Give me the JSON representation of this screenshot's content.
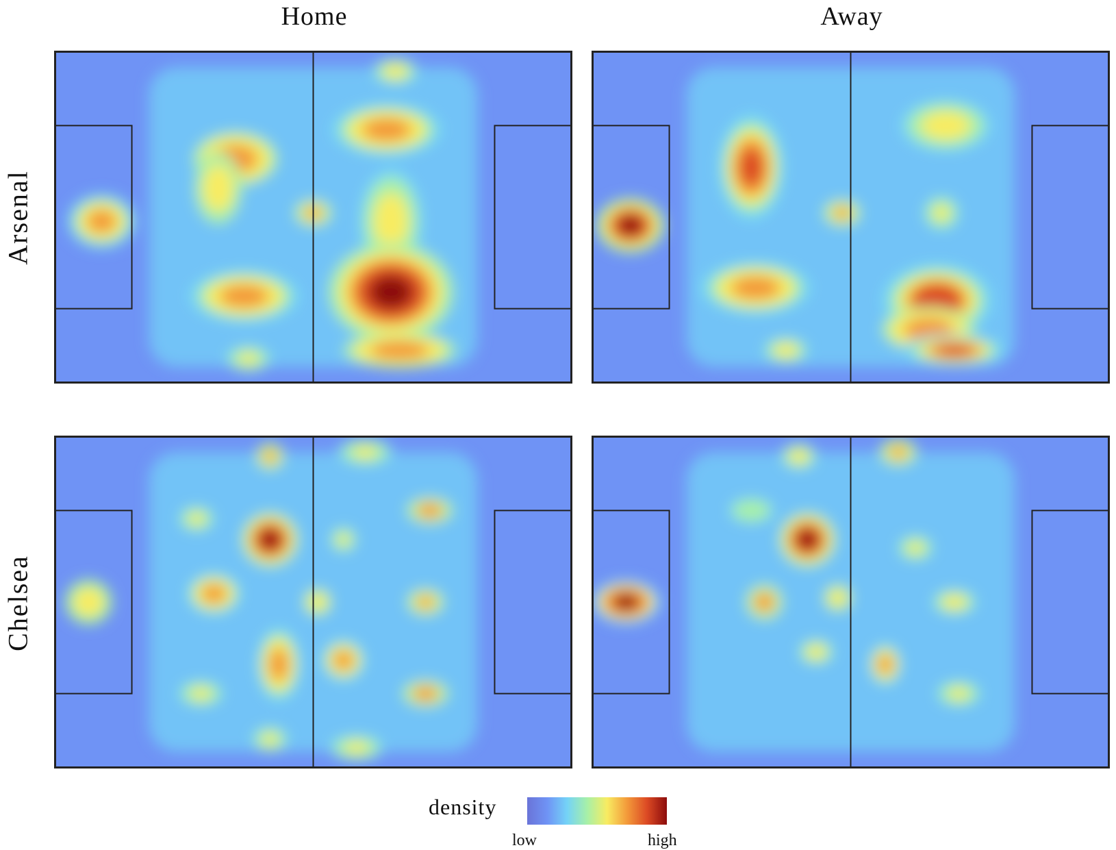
{
  "chart_data": {
    "type": "heatmap",
    "value_label": "density",
    "colorscale": [
      "#6a74d8",
      "#6f93f5",
      "#74d3f7",
      "#a7f0a8",
      "#f8ec62",
      "#f39a3a",
      "#dc4a24",
      "#8c0c0c"
    ],
    "legend": {
      "title": "density",
      "low_label": "low",
      "high_label": "high",
      "placement": "bottom"
    },
    "columns": [
      "Home",
      "Away"
    ],
    "rows": [
      "Arsenal",
      "Chelsea"
    ],
    "pitch": {
      "length": 120,
      "width": 80
    },
    "panels": [
      {
        "row": "Arsenal",
        "column": "Home",
        "hotspots": [
          {
            "x": 11,
            "y": 41,
            "intensity": 0.72,
            "sx": 6,
            "sy": 5
          },
          {
            "x": 42,
            "y": 26,
            "intensity": 0.7,
            "sx": 9,
            "sy": 6
          },
          {
            "x": 38,
            "y": 33,
            "intensity": 0.55,
            "sx": 5,
            "sy": 8
          },
          {
            "x": 44,
            "y": 59,
            "intensity": 0.72,
            "sx": 10,
            "sy": 5
          },
          {
            "x": 60,
            "y": 39,
            "intensity": 0.6,
            "sx": 4,
            "sy": 3
          },
          {
            "x": 77,
            "y": 19,
            "intensity": 0.74,
            "sx": 10,
            "sy": 5
          },
          {
            "x": 78,
            "y": 41,
            "intensity": 0.5,
            "sx": 7,
            "sy": 12
          },
          {
            "x": 78,
            "y": 58,
            "intensity": 1.0,
            "sx": 11,
            "sy": 9
          },
          {
            "x": 80,
            "y": 72,
            "intensity": 0.7,
            "sx": 12,
            "sy": 4
          },
          {
            "x": 79,
            "y": 5,
            "intensity": 0.5,
            "sx": 5,
            "sy": 3
          },
          {
            "x": 45,
            "y": 74,
            "intensity": 0.45,
            "sx": 5,
            "sy": 3
          }
        ]
      },
      {
        "row": "Arsenal",
        "column": "Away",
        "hotspots": [
          {
            "x": 9,
            "y": 42,
            "intensity": 1.0,
            "sx": 6,
            "sy": 5
          },
          {
            "x": 37,
            "y": 28,
            "intensity": 0.75,
            "sx": 6,
            "sy": 10
          },
          {
            "x": 38,
            "y": 57,
            "intensity": 0.72,
            "sx": 10,
            "sy": 5
          },
          {
            "x": 58,
            "y": 39,
            "intensity": 0.62,
            "sx": 4,
            "sy": 3
          },
          {
            "x": 82,
            "y": 18,
            "intensity": 0.5,
            "sx": 10,
            "sy": 6
          },
          {
            "x": 80,
            "y": 60,
            "intensity": 0.88,
            "sx": 10,
            "sy": 7
          },
          {
            "x": 78,
            "y": 67,
            "intensity": 0.7,
            "sx": 10,
            "sy": 5
          },
          {
            "x": 84,
            "y": 72,
            "intensity": 0.8,
            "sx": 9,
            "sy": 3
          },
          {
            "x": 45,
            "y": 72,
            "intensity": 0.5,
            "sx": 5,
            "sy": 3
          },
          {
            "x": 81,
            "y": 39,
            "intensity": 0.45,
            "sx": 4,
            "sy": 4
          }
        ]
      },
      {
        "row": "Chelsea",
        "column": "Home",
        "hotspots": [
          {
            "x": 8,
            "y": 40,
            "intensity": 0.55,
            "sx": 5,
            "sy": 5
          },
          {
            "x": 33,
            "y": 20,
            "intensity": 0.45,
            "sx": 4,
            "sy": 3
          },
          {
            "x": 37,
            "y": 38,
            "intensity": 0.72,
            "sx": 5,
            "sy": 4
          },
          {
            "x": 50,
            "y": 25,
            "intensity": 1.0,
            "sx": 5,
            "sy": 5
          },
          {
            "x": 50,
            "y": 5,
            "intensity": 0.6,
            "sx": 3,
            "sy": 3
          },
          {
            "x": 52,
            "y": 55,
            "intensity": 0.72,
            "sx": 4,
            "sy": 7
          },
          {
            "x": 34,
            "y": 62,
            "intensity": 0.45,
            "sx": 5,
            "sy": 3
          },
          {
            "x": 50,
            "y": 73,
            "intensity": 0.45,
            "sx": 4,
            "sy": 3
          },
          {
            "x": 67,
            "y": 25,
            "intensity": 0.45,
            "sx": 3,
            "sy": 3
          },
          {
            "x": 61,
            "y": 40,
            "intensity": 0.55,
            "sx": 3,
            "sy": 3
          },
          {
            "x": 67,
            "y": 54,
            "intensity": 0.72,
            "sx": 4,
            "sy": 4
          },
          {
            "x": 72,
            "y": 4,
            "intensity": 0.45,
            "sx": 6,
            "sy": 3
          },
          {
            "x": 70,
            "y": 75,
            "intensity": 0.45,
            "sx": 6,
            "sy": 3
          },
          {
            "x": 86,
            "y": 40,
            "intensity": 0.6,
            "sx": 4,
            "sy": 3
          },
          {
            "x": 87,
            "y": 18,
            "intensity": 0.65,
            "sx": 5,
            "sy": 3
          },
          {
            "x": 86,
            "y": 62,
            "intensity": 0.65,
            "sx": 5,
            "sy": 3
          }
        ]
      },
      {
        "row": "Chelsea",
        "column": "Away",
        "hotspots": [
          {
            "x": 8,
            "y": 40,
            "intensity": 0.95,
            "sx": 6,
            "sy": 4
          },
          {
            "x": 37,
            "y": 18,
            "intensity": 0.4,
            "sx": 5,
            "sy": 3
          },
          {
            "x": 50,
            "y": 25,
            "intensity": 1.0,
            "sx": 5,
            "sy": 5
          },
          {
            "x": 48,
            "y": 5,
            "intensity": 0.5,
            "sx": 4,
            "sy": 3
          },
          {
            "x": 40,
            "y": 40,
            "intensity": 0.65,
            "sx": 4,
            "sy": 4
          },
          {
            "x": 52,
            "y": 52,
            "intensity": 0.5,
            "sx": 4,
            "sy": 3
          },
          {
            "x": 57,
            "y": 39,
            "intensity": 0.55,
            "sx": 3,
            "sy": 3
          },
          {
            "x": 68,
            "y": 55,
            "intensity": 0.72,
            "sx": 3,
            "sy": 4
          },
          {
            "x": 71,
            "y": 4,
            "intensity": 0.6,
            "sx": 4,
            "sy": 3
          },
          {
            "x": 84,
            "y": 40,
            "intensity": 0.5,
            "sx": 5,
            "sy": 3
          },
          {
            "x": 85,
            "y": 62,
            "intensity": 0.45,
            "sx": 5,
            "sy": 3
          },
          {
            "x": 75,
            "y": 27,
            "intensity": 0.45,
            "sx": 4,
            "sy": 3
          }
        ]
      }
    ]
  }
}
